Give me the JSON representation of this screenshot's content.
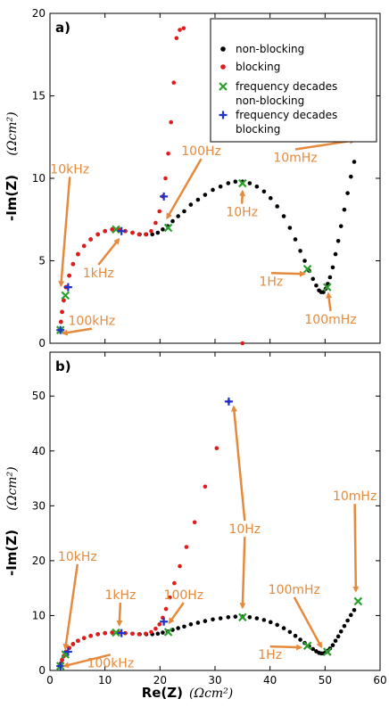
{
  "colors": {
    "nonblocking": "#000000",
    "blocking": "#e31a1c",
    "decade_nonblocking": "#2ca02c",
    "decade_blocking": "#1f33cc",
    "annotation": "#e58a3c"
  },
  "legend": {
    "placement": "top-right",
    "items": [
      {
        "label": "non-blocking",
        "marker": "dot",
        "color": "#000000"
      },
      {
        "label": "blocking",
        "marker": "dot",
        "color": "#e31a1c"
      },
      {
        "label": "frequency decades",
        "label2": "non-blocking",
        "marker": "x",
        "color": "#2ca02c"
      },
      {
        "label": "frequency decades",
        "label2": "blocking",
        "marker": "plus",
        "color": "#1f33cc"
      }
    ]
  },
  "ylabel_main": "-Im(Z)",
  "ylabel_unit": "(Ωcm²)",
  "xlabel_main": "Re(Z)",
  "xlabel_unit": "(Ωcm²)",
  "chart_data": [
    {
      "type": "scatter",
      "panel": "a)",
      "xlim": [
        0,
        60
      ],
      "ylim": [
        0,
        20
      ],
      "yticks": [
        0,
        5,
        10,
        15,
        20
      ],
      "xticks": [],
      "grid": false,
      "series": [
        {
          "name": "non-blocking",
          "marker": "dot",
          "color": "#000000",
          "x": [
            1.9,
            2.0,
            2.2,
            2.5,
            2.9,
            3.5,
            4.2,
            5.1,
            6.2,
            7.4,
            8.7,
            10.0,
            11.3,
            12.5,
            13.7,
            15.0,
            16.3,
            17.5,
            18.6,
            19.6,
            20.5,
            21.4,
            22.3,
            23.3,
            24.4,
            25.6,
            26.9,
            28.2,
            29.6,
            31.0,
            32.4,
            33.7,
            35.0,
            36.3,
            37.6,
            38.9,
            40.1,
            41.3,
            42.5,
            43.6,
            44.6,
            45.5,
            46.3,
            47.1,
            47.8,
            48.4,
            48.9,
            49.3,
            49.7,
            50.1,
            50.5,
            50.9,
            51.4,
            51.9,
            52.4,
            52.9,
            53.5,
            54.1,
            54.7,
            55.3
          ],
          "y": [
            0.8,
            1.3,
            1.9,
            2.6,
            3.4,
            4.1,
            4.8,
            5.4,
            5.9,
            6.3,
            6.6,
            6.8,
            6.9,
            6.9,
            6.8,
            6.7,
            6.6,
            6.6,
            6.6,
            6.7,
            6.9,
            7.1,
            7.4,
            7.7,
            8.0,
            8.4,
            8.7,
            9.0,
            9.3,
            9.5,
            9.7,
            9.8,
            9.8,
            9.7,
            9.5,
            9.2,
            8.8,
            8.3,
            7.7,
            7.0,
            6.3,
            5.6,
            5.0,
            4.4,
            3.9,
            3.5,
            3.2,
            3.1,
            3.1,
            3.3,
            3.6,
            4.0,
            4.6,
            5.4,
            6.2,
            7.1,
            8.1,
            9.1,
            10.1,
            11.0
          ]
        },
        {
          "name": "blocking",
          "marker": "dot",
          "color": "#e31a1c",
          "x": [
            1.9,
            2.0,
            2.2,
            2.5,
            2.9,
            3.5,
            4.2,
            5.1,
            6.2,
            7.4,
            8.7,
            10.0,
            11.3,
            12.5,
            13.7,
            15.0,
            16.2,
            17.4,
            18.4,
            19.2,
            19.9,
            20.5,
            21.0,
            21.5,
            22.0,
            22.5,
            23.0,
            23.6,
            24.3,
            35.0
          ],
          "y": [
            0.8,
            1.3,
            1.9,
            2.6,
            3.4,
            4.1,
            4.8,
            5.4,
            5.9,
            6.3,
            6.6,
            6.8,
            6.9,
            6.9,
            6.8,
            6.7,
            6.6,
            6.6,
            6.8,
            7.3,
            8.0,
            8.9,
            10.0,
            11.5,
            13.4,
            15.8,
            18.5,
            19.0,
            19.1,
            0.0
          ]
        },
        {
          "name": "frequency decades non-blocking",
          "marker": "x",
          "color": "#2ca02c",
          "x": [
            1.9,
            2.8,
            12.0,
            21.5,
            35.0,
            46.8,
            50.4,
            56.0
          ],
          "y": [
            0.8,
            2.9,
            6.9,
            7.0,
            9.7,
            4.5,
            3.4,
            12.6
          ]
        },
        {
          "name": "frequency decades blocking",
          "marker": "plus",
          "color": "#1f33cc",
          "x": [
            1.9,
            3.3,
            13.0,
            20.7
          ],
          "y": [
            0.8,
            3.4,
            6.8,
            8.9
          ]
        }
      ],
      "annotations": [
        {
          "text": "10kHz",
          "tx": 3.6,
          "ty": 10.3,
          "ax": 2.0,
          "ay": 3.5
        },
        {
          "text": "1kHz",
          "tx": 8.8,
          "ty": 4.0,
          "ax": 12.5,
          "ay": 6.3
        },
        {
          "text": "100kHz",
          "tx": 7.6,
          "ty": 1.1,
          "ax": 2.4,
          "ay": 0.6
        },
        {
          "text": "100Hz",
          "tx": 27.5,
          "ty": 11.4,
          "ax": 21.3,
          "ay": 7.6
        },
        {
          "text": "10Hz",
          "tx": 34.9,
          "ty": 7.7,
          "ax": 35.0,
          "ay": 9.2
        },
        {
          "text": "1Hz",
          "tx": 40.2,
          "ty": 3.5,
          "ax": 46.2,
          "ay": 4.2
        },
        {
          "text": "100mHz",
          "tx": 51.0,
          "ty": 1.2,
          "ax": 50.6,
          "ay": 3.0
        },
        {
          "text": "10mHz",
          "tx": 44.6,
          "ty": 11.0,
          "ax": 55.3,
          "ay": 12.3
        }
      ]
    },
    {
      "type": "scatter",
      "panel": "b)",
      "xlim": [
        0,
        60
      ],
      "ylim": [
        0,
        58
      ],
      "yticks": [
        0,
        10,
        20,
        30,
        40,
        50
      ],
      "xticks": [
        0,
        10,
        20,
        30,
        40,
        50,
        60
      ],
      "grid": false,
      "series": [
        {
          "name": "non-blocking",
          "marker": "dot",
          "color": "#000000",
          "x": [
            1.9,
            2.0,
            2.2,
            2.5,
            2.9,
            3.5,
            4.2,
            5.1,
            6.2,
            7.4,
            8.7,
            10.0,
            11.3,
            12.5,
            13.7,
            15.0,
            16.3,
            17.5,
            18.6,
            19.6,
            20.5,
            21.4,
            22.3,
            23.3,
            24.4,
            25.6,
            26.9,
            28.2,
            29.6,
            31.0,
            32.4,
            33.7,
            35.0,
            36.3,
            37.6,
            38.9,
            40.1,
            41.3,
            42.5,
            43.6,
            44.6,
            45.5,
            46.3,
            47.1,
            47.8,
            48.4,
            48.9,
            49.3,
            49.7,
            50.1,
            50.5,
            50.9,
            51.4,
            51.9,
            52.4,
            52.9,
            53.5,
            54.1,
            54.7,
            55.3
          ],
          "y": [
            0.8,
            1.3,
            1.9,
            2.6,
            3.4,
            4.1,
            4.8,
            5.4,
            5.9,
            6.3,
            6.6,
            6.8,
            6.9,
            6.9,
            6.8,
            6.7,
            6.6,
            6.6,
            6.6,
            6.7,
            6.9,
            7.1,
            7.4,
            7.7,
            8.0,
            8.4,
            8.7,
            9.0,
            9.3,
            9.5,
            9.7,
            9.8,
            9.8,
            9.7,
            9.5,
            9.2,
            8.8,
            8.3,
            7.7,
            7.0,
            6.3,
            5.6,
            5.0,
            4.4,
            3.9,
            3.5,
            3.2,
            3.1,
            3.1,
            3.3,
            3.6,
            4.0,
            4.6,
            5.4,
            6.2,
            7.1,
            8.1,
            9.1,
            10.1,
            11.0
          ]
        },
        {
          "name": "blocking",
          "marker": "dot",
          "color": "#e31a1c",
          "x": [
            1.9,
            2.0,
            2.2,
            2.5,
            2.9,
            3.5,
            4.2,
            5.1,
            6.2,
            7.4,
            8.7,
            10.0,
            11.3,
            12.5,
            13.7,
            15.0,
            16.2,
            17.4,
            18.4,
            19.2,
            19.9,
            20.5,
            21.1,
            21.8,
            22.6,
            23.6,
            24.8,
            26.3,
            28.2,
            30.3,
            32.5
          ],
          "y": [
            0.8,
            1.3,
            1.9,
            2.6,
            3.4,
            4.1,
            4.8,
            5.4,
            5.9,
            6.3,
            6.6,
            6.8,
            6.9,
            6.9,
            6.8,
            6.7,
            6.6,
            6.7,
            7.0,
            7.6,
            8.4,
            9.6,
            11.2,
            13.3,
            15.9,
            19.0,
            22.5,
            27.0,
            33.5,
            40.5,
            49.0
          ]
        },
        {
          "name": "frequency decades non-blocking",
          "marker": "x",
          "color": "#2ca02c",
          "x": [
            1.9,
            2.8,
            12.0,
            21.5,
            35.0,
            46.8,
            50.4,
            56.0
          ],
          "y": [
            0.8,
            2.9,
            6.9,
            7.0,
            9.7,
            4.5,
            3.4,
            12.6
          ]
        },
        {
          "name": "frequency decades blocking",
          "marker": "plus",
          "color": "#1f33cc",
          "x": [
            1.9,
            3.3,
            13.0,
            20.7,
            32.5
          ],
          "y": [
            0.8,
            3.4,
            6.8,
            8.9,
            49.0
          ]
        }
      ],
      "annotations": [
        {
          "text": "10kHz",
          "tx": 5.0,
          "ty": 20.0,
          "ax": 2.8,
          "ay": 4.0
        },
        {
          "text": "1kHz",
          "tx": 12.8,
          "ty": 13.0,
          "ax": 12.6,
          "ay": 8.3
        },
        {
          "text": "100kHz",
          "tx": 11.0,
          "ty": 0.6,
          "ax": 2.6,
          "ay": 0.8
        },
        {
          "text": "100Hz",
          "tx": 24.3,
          "ty": 13.0,
          "ax": 21.7,
          "ay": 8.7
        },
        {
          "text": "10Hz",
          "tx": 35.4,
          "ty": 25.0,
          "ax": 33.4,
          "ay": 48.0,
          "ax2": 35.0,
          "ay2": 11.5
        },
        {
          "text": "1Hz",
          "tx": 40.0,
          "ty": 2.1,
          "ax": 45.6,
          "ay": 4.2
        },
        {
          "text": "100mHz",
          "tx": 44.4,
          "ty": 14.0,
          "ax": 49.3,
          "ay": 4.3
        },
        {
          "text": "10mHz",
          "tx": 55.4,
          "ty": 31.0,
          "ax": 55.6,
          "ay": 14.5
        }
      ]
    }
  ]
}
